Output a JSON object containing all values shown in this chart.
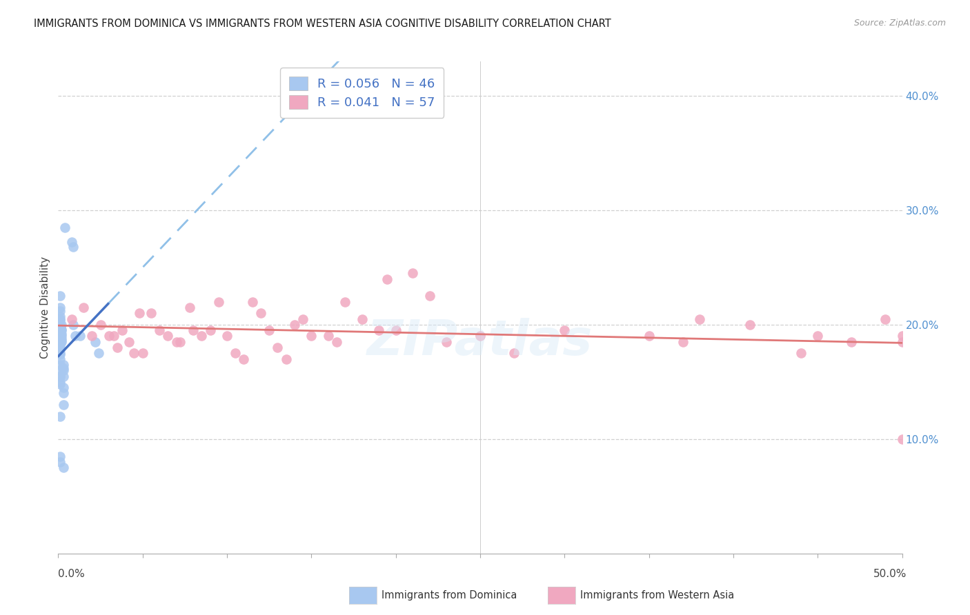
{
  "title": "IMMIGRANTS FROM DOMINICA VS IMMIGRANTS FROM WESTERN ASIA COGNITIVE DISABILITY CORRELATION CHART",
  "source": "Source: ZipAtlas.com",
  "ylabel": "Cognitive Disability",
  "dominica_label": "Immigrants from Dominica",
  "western_asia_label": "Immigrants from Western Asia",
  "R_dominica": "0.056",
  "N_dominica": "46",
  "R_western_asia": "0.041",
  "N_western_asia": "57",
  "xlim": [
    0.0,
    0.5
  ],
  "ylim": [
    0.0,
    0.43
  ],
  "blue_dot_color": "#a8c8f0",
  "pink_dot_color": "#f0a8c0",
  "blue_line_color": "#4472c4",
  "pink_line_color": "#e07878",
  "blue_dashed_color": "#90c0e8",
  "grid_color": "#d0d0d0",
  "background_color": "#ffffff",
  "dominica_x": [
    0.004,
    0.008,
    0.009,
    0.001,
    0.001,
    0.001,
    0.001,
    0.001,
    0.001,
    0.001,
    0.002,
    0.002,
    0.002,
    0.002,
    0.002,
    0.002,
    0.002,
    0.002,
    0.001,
    0.001,
    0.001,
    0.001,
    0.001,
    0.001,
    0.001,
    0.003,
    0.003,
    0.003,
    0.001,
    0.001,
    0.001,
    0.001,
    0.001,
    0.009,
    0.01,
    0.013,
    0.022,
    0.024,
    0.003,
    0.003,
    0.001,
    0.001,
    0.003,
    0.003,
    0.003,
    0.001
  ],
  "dominica_y": [
    0.285,
    0.272,
    0.268,
    0.225,
    0.215,
    0.212,
    0.207,
    0.205,
    0.204,
    0.2,
    0.2,
    0.196,
    0.195,
    0.192,
    0.19,
    0.188,
    0.186,
    0.185,
    0.183,
    0.18,
    0.178,
    0.175,
    0.174,
    0.17,
    0.165,
    0.165,
    0.162,
    0.16,
    0.16,
    0.155,
    0.155,
    0.15,
    0.148,
    0.2,
    0.19,
    0.19,
    0.185,
    0.175,
    0.155,
    0.145,
    0.12,
    0.085,
    0.075,
    0.14,
    0.13,
    0.08
  ],
  "western_asia_x": [
    0.008,
    0.015,
    0.02,
    0.025,
    0.03,
    0.033,
    0.035,
    0.038,
    0.042,
    0.045,
    0.048,
    0.05,
    0.055,
    0.06,
    0.065,
    0.07,
    0.072,
    0.078,
    0.08,
    0.085,
    0.09,
    0.095,
    0.1,
    0.105,
    0.11,
    0.115,
    0.12,
    0.125,
    0.13,
    0.135,
    0.14,
    0.145,
    0.15,
    0.16,
    0.165,
    0.17,
    0.18,
    0.19,
    0.195,
    0.2,
    0.21,
    0.22,
    0.23,
    0.25,
    0.27,
    0.3,
    0.35,
    0.37,
    0.41,
    0.44,
    0.45,
    0.47,
    0.49,
    0.5,
    0.5,
    0.5,
    0.38
  ],
  "western_asia_y": [
    0.205,
    0.215,
    0.19,
    0.2,
    0.19,
    0.19,
    0.18,
    0.195,
    0.185,
    0.175,
    0.21,
    0.175,
    0.21,
    0.195,
    0.19,
    0.185,
    0.185,
    0.215,
    0.195,
    0.19,
    0.195,
    0.22,
    0.19,
    0.175,
    0.17,
    0.22,
    0.21,
    0.195,
    0.18,
    0.17,
    0.2,
    0.205,
    0.19,
    0.19,
    0.185,
    0.22,
    0.205,
    0.195,
    0.24,
    0.195,
    0.245,
    0.225,
    0.185,
    0.19,
    0.175,
    0.195,
    0.19,
    0.185,
    0.2,
    0.175,
    0.19,
    0.185,
    0.205,
    0.19,
    0.185,
    0.1,
    0.205
  ]
}
